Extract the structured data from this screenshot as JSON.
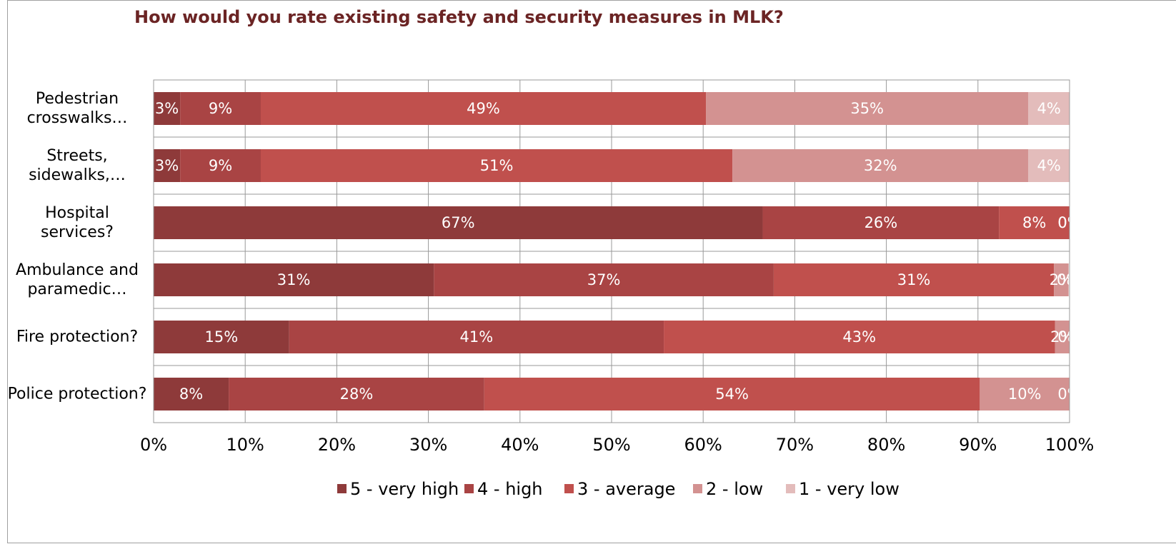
{
  "chart_data": {
    "type": "stacked-bar-horizontal",
    "title": "How would you rate existing safety and security measures in MLK?",
    "categories": [
      "Pedestrian crosswalks…",
      "Streets, sidewalks,…",
      "Hospital services?",
      "Ambulance and paramedic…",
      "Fire protection?",
      "Police protection?"
    ],
    "series": [
      {
        "name": "5 - very high",
        "color": "#8e3a3a",
        "values": [
          2.9,
          2.9,
          66.5,
          30.6,
          14.8,
          8.2
        ],
        "value_labels": [
          "3%",
          "3%",
          "67%",
          "31%",
          "15%",
          "8%"
        ]
      },
      {
        "name": "4 - high",
        "color": "#a94444",
        "values": [
          8.8,
          8.8,
          25.8,
          37.1,
          40.9,
          27.9
        ],
        "value_labels": [
          "9%",
          "9%",
          "26%",
          "37%",
          "41%",
          "28%"
        ]
      },
      {
        "name": "3 - average",
        "color": "#c0504d",
        "values": [
          48.6,
          51.5,
          7.7,
          30.6,
          42.7,
          54.1
        ],
        "value_labels": [
          "49%",
          "51%",
          "8%",
          "31%",
          "43%",
          "54%"
        ]
      },
      {
        "name": "2 - low",
        "color": "#d39291",
        "values": [
          35.2,
          32.3,
          0,
          1.6,
          1.6,
          9.8
        ],
        "value_labels": [
          "35%",
          "32%",
          "0%",
          "2%",
          "2%",
          "10%"
        ]
      },
      {
        "name": "1 - very low",
        "color": "#e3bcbb",
        "values": [
          4.5,
          4.5,
          0,
          0,
          0,
          0
        ],
        "value_labels": [
          "4%",
          "4%",
          "0%",
          "0%",
          "0%",
          "0%"
        ]
      }
    ],
    "xlim": [
      0,
      100
    ],
    "xticks": [
      {
        "value": 0,
        "label": "0%"
      },
      {
        "value": 10,
        "label": "10%"
      },
      {
        "value": 20,
        "label": "20%"
      },
      {
        "value": 30,
        "label": "30%"
      },
      {
        "value": 40,
        "label": "40%"
      },
      {
        "value": 50,
        "label": "50%"
      },
      {
        "value": 60,
        "label": "60%"
      },
      {
        "value": 70,
        "label": "70%"
      },
      {
        "value": 80,
        "label": "80%"
      },
      {
        "value": 90,
        "label": "90%"
      },
      {
        "value": 100,
        "label": "100%"
      }
    ],
    "grid": true,
    "legend": "bottom"
  }
}
